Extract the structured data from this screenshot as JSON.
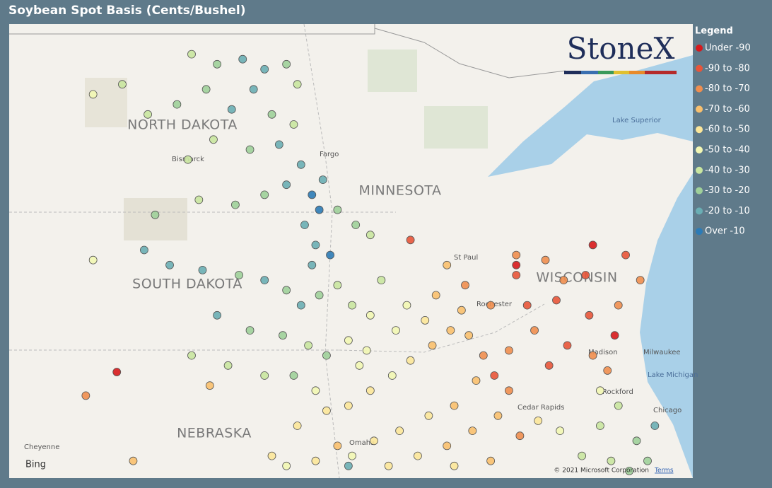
{
  "title": "Soybean Spot Basis (Cents/Bushel)",
  "logo": "StoneX",
  "legend": {
    "title": "Legend",
    "items": [
      {
        "label": "Under -90",
        "color": "#d7191c"
      },
      {
        "label": "-90 to -80",
        "color": "#e8553a"
      },
      {
        "label": "-80 to -70",
        "color": "#f08e4f"
      },
      {
        "label": "-70 to -60",
        "color": "#f9c06e"
      },
      {
        "label": "-60 to -50",
        "color": "#fce79a"
      },
      {
        "label": "-50 to -40",
        "color": "#f2f7b4"
      },
      {
        "label": "-40 to -30",
        "color": "#c9e6a0"
      },
      {
        "label": "-30 to -20",
        "color": "#9fd09a"
      },
      {
        "label": "-20 to -10",
        "color": "#6aaeb4"
      },
      {
        "label": "Over -10",
        "color": "#2c7bb6"
      }
    ]
  },
  "places": [
    "NORTH DAKOTA",
    "MINNESOTA",
    "SOUTH DAKOTA",
    "WISCONSIN",
    "NEBRASKA",
    "Bismarck",
    "Fargo",
    "St Paul",
    "Rochester",
    "Madison",
    "Milwaukee",
    "Chicago",
    "Cedar Rapids",
    "Rockford",
    "Omaha",
    "Cheyenne",
    "Lake Superior",
    "Lake Michigan"
  ],
  "attribution": {
    "provider": "Bing",
    "copyright": "© 2021 Microsoft Corporation",
    "terms": "Terms"
  },
  "points": [
    [
      -100.2,
      49.0,
      6
    ],
    [
      -99.5,
      48.8,
      7
    ],
    [
      -98.8,
      48.9,
      8
    ],
    [
      -98.2,
      48.7,
      8
    ],
    [
      -97.6,
      48.8,
      7
    ],
    [
      -97.3,
      48.4,
      6
    ],
    [
      -98.5,
      48.3,
      8
    ],
    [
      -99.8,
      48.3,
      7
    ],
    [
      -100.6,
      48.0,
      7
    ],
    [
      -99.1,
      47.9,
      8
    ],
    [
      -98.0,
      47.8,
      7
    ],
    [
      -97.4,
      47.6,
      6
    ],
    [
      -97.8,
      47.2,
      8
    ],
    [
      -98.6,
      47.1,
      7
    ],
    [
      -99.6,
      47.3,
      6
    ],
    [
      -100.3,
      46.9,
      6
    ],
    [
      -97.2,
      46.8,
      8
    ],
    [
      -97.6,
      46.4,
      8
    ],
    [
      -98.2,
      46.2,
      7
    ],
    [
      -99.0,
      46.0,
      7
    ],
    [
      -100.0,
      46.1,
      6
    ],
    [
      -101.2,
      45.8,
      7
    ],
    [
      -96.9,
      46.2,
      9
    ],
    [
      -96.7,
      45.9,
      9
    ],
    [
      -97.1,
      45.6,
      8
    ],
    [
      -96.6,
      46.5,
      8
    ],
    [
      -101.4,
      47.8,
      6
    ],
    [
      -102.1,
      48.4,
      6
    ],
    [
      -102.9,
      48.2,
      5
    ],
    [
      -96.2,
      45.9,
      7
    ],
    [
      -95.7,
      45.6,
      7
    ],
    [
      -95.3,
      45.4,
      6
    ],
    [
      -94.2,
      45.3,
      1
    ],
    [
      -91.3,
      44.8,
      0
    ],
    [
      -91.3,
      44.6,
      1
    ],
    [
      -96.8,
      45.2,
      8
    ],
    [
      -96.4,
      45.0,
      9
    ],
    [
      -96.9,
      44.8,
      8
    ],
    [
      -102.9,
      44.9,
      5
    ],
    [
      -101.5,
      45.1,
      8
    ],
    [
      -100.8,
      44.8,
      8
    ],
    [
      -99.9,
      44.7,
      8
    ],
    [
      -98.9,
      44.6,
      7
    ],
    [
      -98.2,
      44.5,
      8
    ],
    [
      -97.6,
      44.3,
      7
    ],
    [
      -97.2,
      44.0,
      8
    ],
    [
      -96.7,
      44.2,
      7
    ],
    [
      -96.2,
      44.4,
      6
    ],
    [
      -95.8,
      44.0,
      6
    ],
    [
      -95.3,
      43.8,
      5
    ],
    [
      -99.5,
      43.8,
      8
    ],
    [
      -98.6,
      43.5,
      7
    ],
    [
      -97.7,
      43.4,
      7
    ],
    [
      -97.0,
      43.2,
      6
    ],
    [
      -96.5,
      43.0,
      7
    ],
    [
      -95.9,
      43.3,
      5
    ],
    [
      -95.4,
      43.1,
      5
    ],
    [
      -100.2,
      43.0,
      6
    ],
    [
      -99.2,
      42.8,
      6
    ],
    [
      -98.2,
      42.6,
      6
    ],
    [
      -97.4,
      42.6,
      7
    ],
    [
      -96.8,
      42.3,
      5
    ],
    [
      -95.9,
      42.0,
      4
    ],
    [
      -95.3,
      42.3,
      4
    ],
    [
      -94.7,
      42.6,
      5
    ],
    [
      -94.2,
      42.9,
      4
    ],
    [
      -93.6,
      43.2,
      3
    ],
    [
      -93.1,
      43.5,
      3
    ],
    [
      -92.6,
      43.4,
      3
    ],
    [
      -92.2,
      43.0,
      2
    ],
    [
      -91.9,
      42.6,
      1
    ],
    [
      -91.5,
      42.3,
      2
    ],
    [
      -92.4,
      42.5,
      3
    ],
    [
      -93.0,
      42.0,
      3
    ],
    [
      -93.7,
      41.8,
      4
    ],
    [
      -94.5,
      41.5,
      4
    ],
    [
      -95.2,
      41.3,
      4
    ],
    [
      -95.8,
      41.0,
      5
    ],
    [
      -94.0,
      41.0,
      4
    ],
    [
      -93.2,
      41.2,
      3
    ],
    [
      -92.5,
      41.5,
      3
    ],
    [
      -91.8,
      41.8,
      3
    ],
    [
      -91.2,
      41.4,
      2
    ],
    [
      -90.7,
      41.7,
      4
    ],
    [
      -92.0,
      40.9,
      3
    ],
    [
      -93.0,
      40.8,
      4
    ],
    [
      -94.8,
      40.8,
      4
    ],
    [
      -91.5,
      43.1,
      2
    ],
    [
      -92.8,
      43.9,
      3
    ],
    [
      -93.8,
      43.7,
      4
    ],
    [
      -94.6,
      43.5,
      5
    ],
    [
      -95.6,
      42.8,
      5
    ],
    [
      -93.5,
      44.2,
      3
    ],
    [
      -92.7,
      44.4,
      2
    ],
    [
      -92.0,
      44.0,
      2
    ],
    [
      -93.2,
      44.8,
      3
    ],
    [
      -94.3,
      44.0,
      5
    ],
    [
      -95.0,
      44.5,
      6
    ],
    [
      -91.3,
      45.0,
      2
    ],
    [
      -90.5,
      44.9,
      2
    ],
    [
      -90.0,
      44.5,
      2
    ],
    [
      -89.4,
      44.6,
      1
    ],
    [
      -89.2,
      45.2,
      0
    ],
    [
      -88.3,
      45.0,
      1
    ],
    [
      -87.9,
      44.5,
      2
    ],
    [
      -88.5,
      44.0,
      2
    ],
    [
      -89.3,
      43.8,
      1
    ],
    [
      -90.2,
      44.1,
      1
    ],
    [
      -90.8,
      43.5,
      2
    ],
    [
      -89.9,
      43.2,
      1
    ],
    [
      -89.2,
      43.0,
      2
    ],
    [
      -88.6,
      43.4,
      0
    ],
    [
      -88.8,
      42.7,
      2
    ],
    [
      -90.4,
      42.8,
      1
    ],
    [
      -91.0,
      44.0,
      1
    ],
    [
      -89.0,
      42.3,
      5
    ],
    [
      -88.5,
      42.0,
      6
    ],
    [
      -88.0,
      41.3,
      7
    ],
    [
      -88.7,
      40.9,
      6
    ],
    [
      -89.5,
      41.0,
      6
    ],
    [
      -90.1,
      41.5,
      5
    ],
    [
      -87.5,
      41.6,
      8
    ],
    [
      -88.2,
      40.7,
      7
    ],
    [
      -89.0,
      41.6,
      6
    ],
    [
      -87.7,
      40.9,
      7
    ],
    [
      -96.5,
      41.9,
      4
    ],
    [
      -97.3,
      41.6,
      4
    ],
    [
      -98.0,
      41.0,
      4
    ],
    [
      -96.8,
      40.9,
      4
    ],
    [
      -96.2,
      41.2,
      3
    ],
    [
      -97.6,
      40.8,
      5
    ],
    [
      -95.9,
      40.8,
      8
    ],
    [
      -101.8,
      40.9,
      3
    ],
    [
      -103.1,
      42.2,
      2
    ],
    [
      -102.25,
      42.67,
      0
    ],
    [
      -99.7,
      42.4,
      3
    ]
  ]
}
